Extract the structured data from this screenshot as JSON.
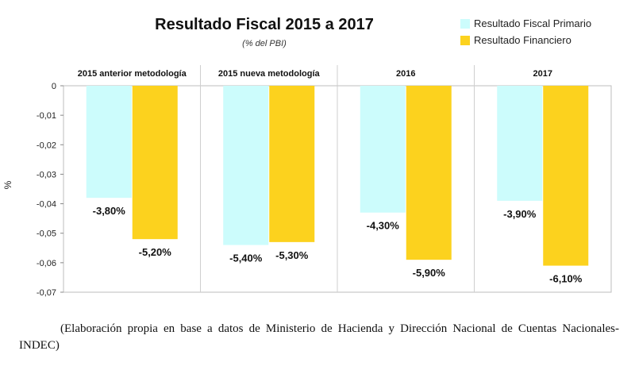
{
  "chart_data": {
    "type": "bar",
    "title": "Resultado Fiscal 2015 a 2017",
    "subtitle": "(% del PBI)",
    "ylabel": "%",
    "ylim": [
      -0.07,
      0
    ],
    "yticks": [
      "0",
      "-0,01",
      "-0,02",
      "-0,03",
      "-0,04",
      "-0,05",
      "-0,06",
      "-0,07"
    ],
    "categories": [
      "2015 anterior metodología",
      "2015 nueva metodología",
      "2016",
      "2017"
    ],
    "category_position": "top",
    "legend_position": "top-right",
    "grid": false,
    "series": [
      {
        "name": "Resultado Fiscal Primario",
        "color": "#ccfcfc",
        "values": [
          -0.038,
          -0.054,
          -0.043,
          -0.039
        ],
        "labels": [
          "-3,80%",
          "-5,40%",
          "-4,30%",
          "-3,90%"
        ]
      },
      {
        "name": "Resultado Financiero",
        "color": "#fcd21e",
        "values": [
          -0.052,
          -0.053,
          -0.059,
          -0.061
        ],
        "labels": [
          "-5,20%",
          "-5,30%",
          "-5,90%",
          "-6,10%"
        ]
      }
    ]
  },
  "caption": "(Elaboración propia en base a datos de Ministerio de Hacienda y Dirección Nacional de Cuentas Nacionales-INDEC)"
}
